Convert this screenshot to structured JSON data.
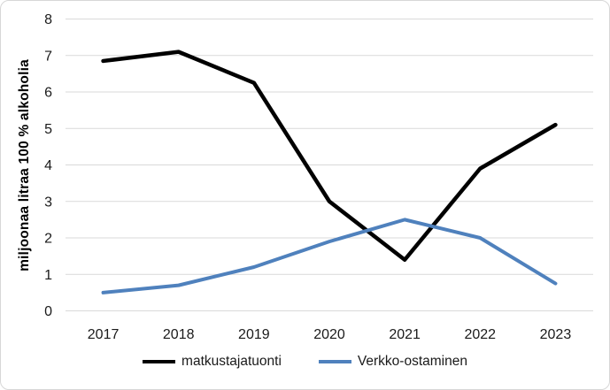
{
  "chart_data": {
    "type": "line",
    "title": "",
    "xlabel": "",
    "ylabel": "miljoonaa litraa 100 % alkoholia",
    "categories": [
      "2017",
      "2018",
      "2019",
      "2020",
      "2021",
      "2022",
      "2023"
    ],
    "series": [
      {
        "name": "matkustajatuonti",
        "color": "#000000",
        "linewidth": 4.5,
        "values": [
          6.85,
          7.1,
          6.25,
          3.0,
          1.4,
          3.9,
          5.1
        ]
      },
      {
        "name": "Verkko-ostaminen",
        "color": "#4F81BD",
        "linewidth": 4,
        "values": [
          0.5,
          0.7,
          1.2,
          1.9,
          2.5,
          2.0,
          0.75
        ]
      }
    ],
    "ylim": [
      0,
      8
    ],
    "yticks": [
      "0",
      "1",
      "2",
      "3",
      "4",
      "5",
      "6",
      "7",
      "8"
    ],
    "grid": "horizontal",
    "gridline_color": "#d9d9d9",
    "legend_position": "bottom"
  }
}
